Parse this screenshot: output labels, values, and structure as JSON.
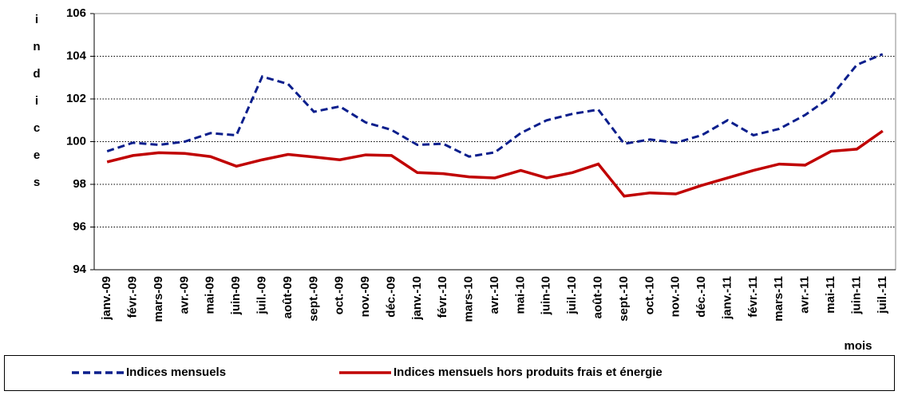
{
  "chart_data": {
    "type": "line",
    "y_label": "indices",
    "x_label": "mois",
    "categories": [
      "janv.-09",
      "févr.-09",
      "mars-09",
      "avr.-09",
      "mai-09",
      "juin-09",
      "juil.-09",
      "août-09",
      "sept.-09",
      "oct.-09",
      "nov.-09",
      "déc.-09",
      "janv.-10",
      "févr.-10",
      "mars-10",
      "avr.-10",
      "mai-10",
      "juin-10",
      "juil.-10",
      "août-10",
      "sept.-10",
      "oct.-10",
      "nov.-10",
      "déc.-10",
      "janv.-11",
      "févr.-11",
      "mars-11",
      "avr.-11",
      "mai-11",
      "juin-11",
      "juil.-11"
    ],
    "series": [
      {
        "name": "Indices mensuels",
        "color": "#0a1e8c",
        "dash": true,
        "values": [
          99.55,
          99.95,
          99.85,
          100.0,
          100.4,
          100.3,
          103.05,
          102.7,
          101.4,
          101.65,
          100.9,
          100.55,
          99.85,
          99.9,
          99.3,
          99.5,
          100.4,
          101.0,
          101.3,
          101.5,
          99.9,
          100.1,
          99.95,
          100.3,
          101.0,
          100.3,
          100.6,
          101.25,
          102.1,
          103.6,
          104.1
        ]
      },
      {
        "name": "Indices mensuels hors produits frais et énergie",
        "color": "#c00000",
        "dash": false,
        "values": [
          99.05,
          99.35,
          99.48,
          99.45,
          99.3,
          98.85,
          99.15,
          99.4,
          99.28,
          99.15,
          99.38,
          99.35,
          98.55,
          98.5,
          98.35,
          98.3,
          98.65,
          98.3,
          98.55,
          98.95,
          97.45,
          97.6,
          97.55,
          97.95,
          98.3,
          98.65,
          98.95,
          98.9,
          99.55,
          99.65,
          100.5
        ]
      }
    ],
    "ylim": [
      94,
      106
    ],
    "yticks": [
      94,
      96,
      98,
      100,
      102,
      104,
      106
    ],
    "grid": true,
    "legend": "bottom"
  }
}
